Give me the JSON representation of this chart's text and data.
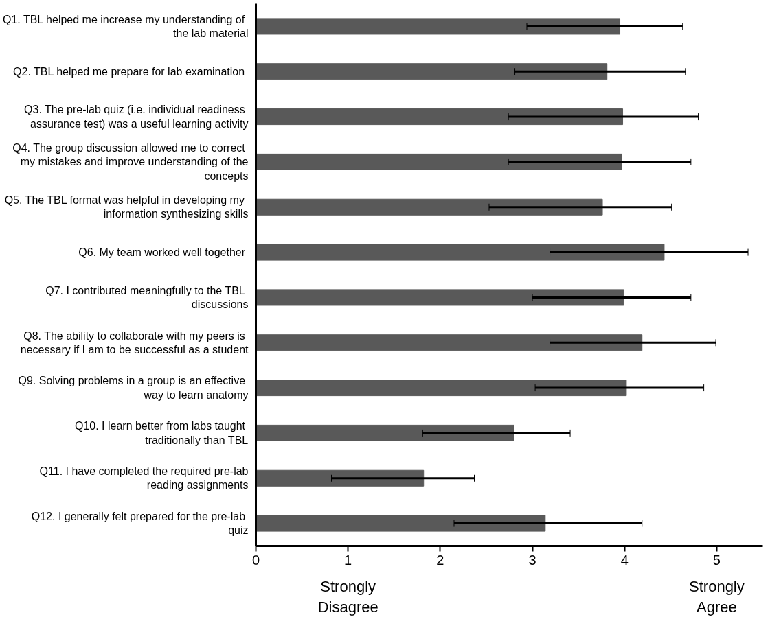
{
  "chart_data": {
    "type": "bar",
    "orientation": "horizontal",
    "categories": [
      "Q1.  TBL helped me increase my understanding of the lab material",
      "Q2.  TBL helped me prepare for lab examination",
      "Q3.  The pre-lab quiz (i.e. individual readiness assurance test) was a useful learning activity",
      "Q4.  The group discussion allowed me to correct my mistakes and improve understanding of the concepts",
      "Q5.  The TBL format was helpful in developing my information synthesizing skills",
      "Q6.  My team worked well together",
      "Q7.  I contributed meaningfully to the TBL discussions",
      "Q8.  The ability to collaborate with my peers is necessary if I am to be successful as a student",
      "Q9.  Solving problems in a group is an effective way to learn anatomy",
      "Q10.  I learn better from labs taught traditionally than TBL",
      "Q11. I have completed the required pre-lab reading assignments",
      "Q12.  I generally felt prepared for the pre-lab quiz"
    ],
    "values": [
      3.95,
      3.81,
      3.98,
      3.97,
      3.76,
      4.43,
      3.99,
      4.19,
      4.02,
      2.8,
      1.82,
      3.14
    ],
    "errors": [
      [
        2.94,
        4.63
      ],
      [
        2.81,
        4.66
      ],
      [
        2.74,
        4.8
      ],
      [
        2.74,
        4.72
      ],
      [
        2.53,
        4.51
      ],
      [
        3.19,
        5.34
      ],
      [
        3.0,
        4.72
      ],
      [
        3.19,
        4.99
      ],
      [
        3.03,
        4.86
      ],
      [
        1.81,
        3.41
      ],
      [
        0.82,
        2.37
      ],
      [
        2.15,
        4.19
      ]
    ],
    "color": "#595959",
    "xlim": [
      0,
      5.5
    ],
    "xticks": [
      0,
      1,
      2,
      3,
      4,
      5
    ],
    "annotations": [
      "Strongly\nDisagree",
      "Strongly\nAgree"
    ],
    "grid": false
  }
}
